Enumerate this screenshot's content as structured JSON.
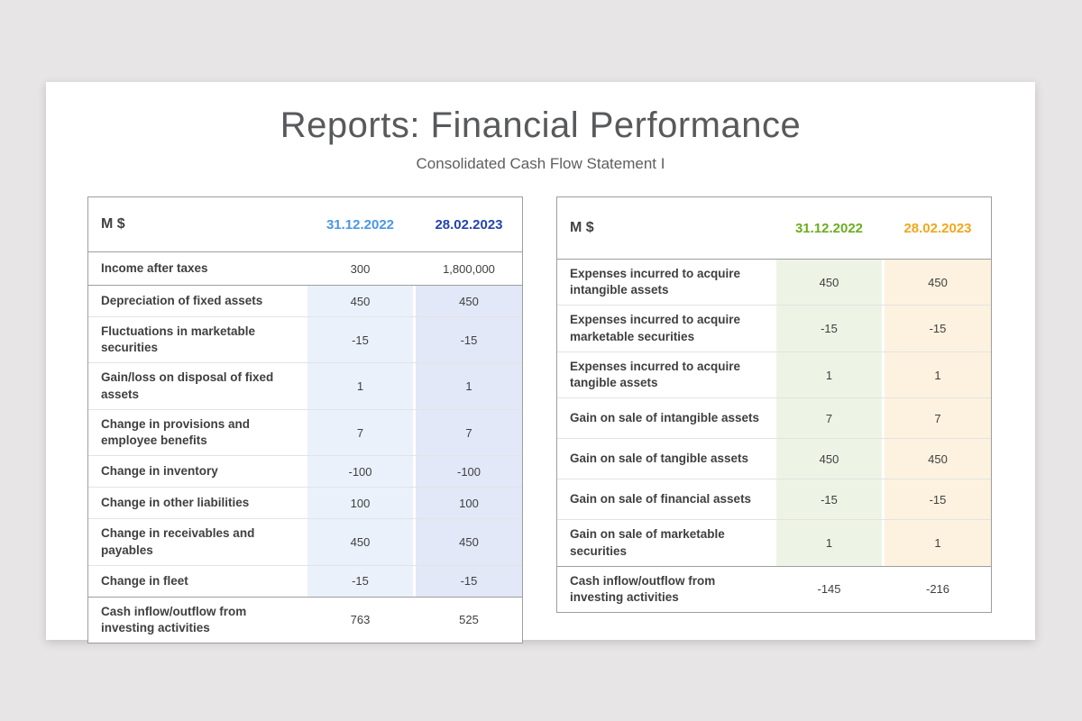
{
  "page": {
    "title": "Reports: Financial Performance",
    "subtitle": "Consolidated Cash Flow Statement I"
  },
  "colors": {
    "background": "#e7e5e5",
    "slide": "#ffffff",
    "title_text": "#58595b",
    "table_border": "#9e9e9e",
    "row_divider": "#e3e3e3",
    "left_col_2022_header": "#4a96e8",
    "left_col_2023_header": "#2443b0",
    "left_col_2022_tint": "#eaf1fb",
    "left_col_2023_tint": "#e2e8f8",
    "right_col_2022_header": "#6bad21",
    "right_col_2023_header": "#f2a71b",
    "right_col_2022_tint": "#edf4e5",
    "right_col_2023_tint": "#fdf2df"
  },
  "tables": {
    "left": {
      "unit": "M $",
      "columns": {
        "c1": "31.12.2022",
        "c2": "28.02.2023"
      },
      "income_row": {
        "label": "Income after taxes",
        "y2022": "300",
        "y2023": "1,800,000"
      },
      "rows": [
        {
          "label": "Depreciation of fixed assets",
          "y2022": "450",
          "y2023": "450"
        },
        {
          "label": "Fluctuations in marketable securities",
          "y2022": "-15",
          "y2023": "-15"
        },
        {
          "label": "Gain/loss on disposal of fixed assets",
          "y2022": "1",
          "y2023": "1"
        },
        {
          "label": "Change in provisions and employee benefits",
          "y2022": "7",
          "y2023": "7"
        },
        {
          "label": "Change in inventory",
          "y2022": "-100",
          "y2023": "-100"
        },
        {
          "label": "Change in other liabilities",
          "y2022": "100",
          "y2023": "100"
        },
        {
          "label": "Change in receivables and payables",
          "y2022": "450",
          "y2023": "450"
        },
        {
          "label": "Change in fleet",
          "y2022": "-15",
          "y2023": "-15"
        }
      ],
      "total_row": {
        "label": "Cash inflow/outflow from investing activities",
        "y2022": "763",
        "y2023": "525"
      }
    },
    "right": {
      "unit": "M $",
      "columns": {
        "c1": "31.12.2022",
        "c2": "28.02.2023"
      },
      "rows": [
        {
          "label": "Expenses incurred to acquire intangible assets",
          "y2022": "450",
          "y2023": "450"
        },
        {
          "label": "Expenses incurred to acquire marketable securities",
          "y2022": "-15",
          "y2023": "-15"
        },
        {
          "label": "Expenses incurred to acquire tangible assets",
          "y2022": "1",
          "y2023": "1"
        },
        {
          "label": "Gain on sale of intangible assets",
          "y2022": "7",
          "y2023": "7"
        },
        {
          "label": "Gain on sale of tangible assets",
          "y2022": "450",
          "y2023": "450"
        },
        {
          "label": "Gain on sale of financial assets",
          "y2022": "-15",
          "y2023": "-15"
        },
        {
          "label": "Gain on sale of marketable securities",
          "y2022": "1",
          "y2023": "1"
        }
      ],
      "total_row": {
        "label": "Cash inflow/outflow from investing activities",
        "y2022": "-145",
        "y2023": "-216"
      }
    }
  }
}
